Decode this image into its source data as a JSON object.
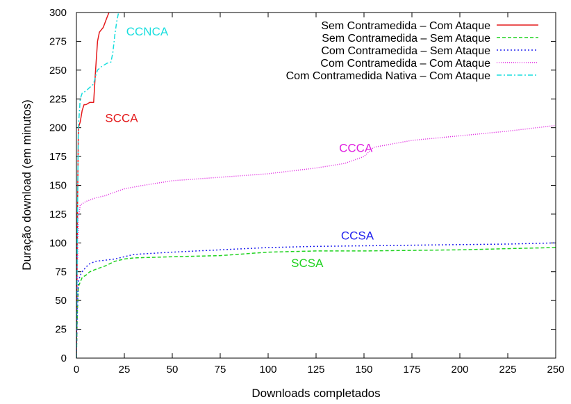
{
  "chart_data": {
    "type": "line",
    "title": "",
    "xlabel": "Downloads completados",
    "ylabel": "Duração download (em minutos)",
    "xlim": [
      0,
      250
    ],
    "ylim": [
      0,
      300
    ],
    "xticks": [
      "0",
      "25",
      "50",
      "75",
      "100",
      "125",
      "150",
      "175",
      "200",
      "225",
      "250"
    ],
    "yticks": [
      "0",
      "25",
      "50",
      "75",
      "100",
      "125",
      "150",
      "175",
      "200",
      "225",
      "250",
      "275",
      "300"
    ],
    "legend_position": "top-right",
    "series": [
      {
        "name": "Sem Contramedida – Com Ataque",
        "annotation": "SCCA",
        "color": "#e41a1c",
        "dash": "",
        "points": [
          [
            0,
            0
          ],
          [
            0.5,
            120
          ],
          [
            1,
            200
          ],
          [
            2,
            205
          ],
          [
            3,
            215
          ],
          [
            4,
            220
          ],
          [
            5,
            220
          ],
          [
            7,
            222
          ],
          [
            9,
            222
          ],
          [
            10,
            250
          ],
          [
            11,
            275
          ],
          [
            12,
            283
          ],
          [
            14,
            287
          ],
          [
            16,
            296
          ],
          [
            17,
            300
          ],
          [
            18,
            305
          ]
        ]
      },
      {
        "name": "Sem Contramedida – Sem Ataque",
        "annotation": "SCSA",
        "color": "#1fd21f",
        "dash": "5,3",
        "points": [
          [
            0,
            0
          ],
          [
            0.5,
            40
          ],
          [
            1,
            62
          ],
          [
            2,
            66
          ],
          [
            3,
            70
          ],
          [
            5,
            72
          ],
          [
            7,
            75
          ],
          [
            10,
            77
          ],
          [
            15,
            80
          ],
          [
            20,
            84
          ],
          [
            25,
            86
          ],
          [
            30,
            87
          ],
          [
            50,
            88
          ],
          [
            75,
            89
          ],
          [
            100,
            92
          ],
          [
            125,
            93
          ],
          [
            150,
            93
          ],
          [
            175,
            93.5
          ],
          [
            200,
            94
          ],
          [
            225,
            95
          ],
          [
            250,
            96
          ]
        ]
      },
      {
        "name": "Com Contramedida – Sem Ataque",
        "annotation": "CCSA",
        "color": "#2222ee",
        "dash": "2,3",
        "points": [
          [
            0,
            0
          ],
          [
            0.5,
            45
          ],
          [
            1,
            66
          ],
          [
            2,
            72
          ],
          [
            3,
            75
          ],
          [
            5,
            79
          ],
          [
            7,
            82
          ],
          [
            10,
            84
          ],
          [
            15,
            85
          ],
          [
            20,
            86
          ],
          [
            25,
            88
          ],
          [
            30,
            90
          ],
          [
            50,
            92
          ],
          [
            75,
            94
          ],
          [
            100,
            96
          ],
          [
            125,
            97
          ],
          [
            150,
            97.5
          ],
          [
            175,
            98
          ],
          [
            200,
            98.5
          ],
          [
            225,
            99
          ],
          [
            250,
            100
          ]
        ]
      },
      {
        "name": "Com Contramedida – Com Ataque",
        "annotation": "CCCA",
        "color": "#e020e0",
        "dash": "1,2",
        "points": [
          [
            0,
            0
          ],
          [
            0.5,
            80
          ],
          [
            1,
            120
          ],
          [
            2,
            133
          ],
          [
            5,
            136
          ],
          [
            10,
            139
          ],
          [
            15,
            141
          ],
          [
            20,
            144
          ],
          [
            25,
            147
          ],
          [
            35,
            150
          ],
          [
            50,
            154
          ],
          [
            75,
            157
          ],
          [
            100,
            160
          ],
          [
            125,
            165
          ],
          [
            140,
            169
          ],
          [
            150,
            175
          ],
          [
            155,
            183
          ],
          [
            175,
            189
          ],
          [
            200,
            193
          ],
          [
            225,
            197
          ],
          [
            250,
            202
          ]
        ]
      },
      {
        "name": "Com Contramedida Nativa – Com Ataque",
        "annotation": "CCNCA",
        "color": "#18dede",
        "dash": "7,3,2,3",
        "points": [
          [
            0,
            0
          ],
          [
            0.5,
            110
          ],
          [
            1,
            200
          ],
          [
            2,
            225
          ],
          [
            3,
            230
          ],
          [
            5,
            232
          ],
          [
            7,
            235
          ],
          [
            9,
            238
          ],
          [
            10,
            245
          ],
          [
            11,
            250
          ],
          [
            13,
            253
          ],
          [
            15,
            255
          ],
          [
            16,
            256
          ],
          [
            18,
            257
          ],
          [
            19,
            265
          ],
          [
            20,
            280
          ],
          [
            21,
            292
          ],
          [
            22,
            300
          ],
          [
            22.5,
            305
          ]
        ]
      }
    ],
    "annotations": [
      {
        "text": "CCNCA",
        "x": 26,
        "y": 280,
        "color": "#18dede"
      },
      {
        "text": "SCCA",
        "x": 15,
        "y": 205,
        "color": "#e41a1c"
      },
      {
        "text": "CCCA",
        "x": 137,
        "y": 179,
        "color": "#e020e0"
      },
      {
        "text": "CCSA",
        "x": 138,
        "y": 103,
        "color": "#2222ee"
      },
      {
        "text": "SCSA",
        "x": 112,
        "y": 79,
        "color": "#1fd21f"
      }
    ]
  }
}
